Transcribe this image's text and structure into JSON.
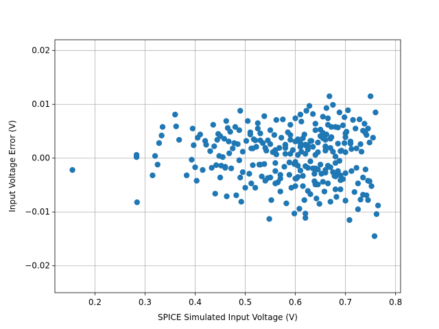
{
  "chart_data": {
    "type": "scatter",
    "title": "",
    "xlabel": "SPICE Simulated Input Voltage (V)",
    "ylabel": "Input Voltage Error (V)",
    "xlim": [
      0.12,
      0.81
    ],
    "ylim": [
      -0.025,
      0.022
    ],
    "xticks": [
      0.2,
      0.3,
      0.4,
      0.5,
      0.6,
      0.7,
      0.8
    ],
    "xtick_labels": [
      "0.2",
      "0.3",
      "0.4",
      "0.5",
      "0.6",
      "0.7",
      "0.8"
    ],
    "yticks": [
      -0.02,
      -0.01,
      0.0,
      0.01,
      0.02
    ],
    "ytick_labels": [
      "−0.02",
      "−0.01",
      "0.00",
      "0.01",
      "0.02"
    ],
    "grid": true,
    "marker_color": "#1f77b4",
    "series": [
      {
        "name": "",
        "x": [
          0.155,
          0.283,
          0.283,
          0.284,
          0.315,
          0.32,
          0.325,
          0.328,
          0.333,
          0.335,
          0.36,
          0.362,
          0.368,
          0.383,
          0.393,
          0.395,
          0.397,
          0.4,
          0.403,
          0.405,
          0.41,
          0.415,
          0.42,
          0.422,
          0.43,
          0.433,
          0.436,
          0.44,
          0.442,
          0.444,
          0.446,
          0.45,
          0.452,
          0.455,
          0.458,
          0.46,
          0.462,
          0.463,
          0.465,
          0.467,
          0.47,
          0.472,
          0.475,
          0.478,
          0.48,
          0.482,
          0.485,
          0.488,
          0.49,
          0.49,
          0.492,
          0.495,
          0.5,
          0.502,
          0.505,
          0.508,
          0.51,
          0.512,
          0.515,
          0.517,
          0.52,
          0.522,
          0.525,
          0.528,
          0.53,
          0.533,
          0.535,
          0.538,
          0.54,
          0.542,
          0.545,
          0.548,
          0.55,
          0.552,
          0.555,
          0.558,
          0.56,
          0.562,
          0.565,
          0.568,
          0.57,
          0.572,
          0.575,
          0.578,
          0.58,
          0.582,
          0.585,
          0.588,
          0.59,
          0.592,
          0.595,
          0.598,
          0.6,
          0.602,
          0.605,
          0.608,
          0.61,
          0.612,
          0.615,
          0.618,
          0.62,
          0.622,
          0.625,
          0.628,
          0.63,
          0.632,
          0.635,
          0.638,
          0.64,
          0.642,
          0.645,
          0.648,
          0.65,
          0.652,
          0.655,
          0.658,
          0.66,
          0.662,
          0.665,
          0.668,
          0.67,
          0.672,
          0.675,
          0.678,
          0.68,
          0.682,
          0.685,
          0.688,
          0.69,
          0.692,
          0.695,
          0.698,
          0.7,
          0.702,
          0.705,
          0.708,
          0.71,
          0.712,
          0.715,
          0.718,
          0.72,
          0.722,
          0.725,
          0.728,
          0.73,
          0.732,
          0.735,
          0.738,
          0.74,
          0.742,
          0.745,
          0.748,
          0.75,
          0.752,
          0.755,
          0.758,
          0.76,
          0.765,
          0.742,
          0.74,
          0.745,
          0.762,
          0.735,
          0.73,
          0.745,
          0.725,
          0.698,
          0.62,
          0.598,
          0.618,
          0.665,
          0.672,
          0.66,
          0.64,
          0.655,
          0.695,
          0.68,
          0.61,
          0.59,
          0.545,
          0.525,
          0.515,
          0.495,
          0.45,
          0.438,
          0.46,
          0.51,
          0.53,
          0.56,
          0.58,
          0.605,
          0.625,
          0.645,
          0.67,
          0.69,
          0.71,
          0.722,
          0.735,
          0.748,
          0.712,
          0.688,
          0.662,
          0.638,
          0.612,
          0.588,
          0.562,
          0.538,
          0.512,
          0.488,
          0.468,
          0.448,
          0.6,
          0.62,
          0.64,
          0.66,
          0.68,
          0.7,
          0.6,
          0.62,
          0.64,
          0.66,
          0.68,
          0.7,
          0.61,
          0.63,
          0.65,
          0.67,
          0.69,
          0.61,
          0.63,
          0.65,
          0.67,
          0.69,
          0.6,
          0.62,
          0.64,
          0.66,
          0.68,
          0.7,
          0.6,
          0.62,
          0.64,
          0.66,
          0.68,
          0.7,
          0.605,
          0.625,
          0.645,
          0.665,
          0.685,
          0.605,
          0.625,
          0.645,
          0.665,
          0.685,
          0.615,
          0.635,
          0.655,
          0.675,
          0.615,
          0.635,
          0.655,
          0.675,
          0.57,
          0.58,
          0.59,
          0.57,
          0.58,
          0.59,
          0.55,
          0.56,
          0.55,
          0.56,
          0.54,
          0.53,
          0.52
        ],
        "y": [
          -0.0022,
          0.0006,
          0.0002,
          -0.0082,
          -0.0032,
          0.0004,
          -0.0012,
          0.0028,
          0.0042,
          0.0058,
          0.0081,
          0.0059,
          0.0034,
          -0.0032,
          -0.0003,
          0.0055,
          0.0024,
          -0.0017,
          -0.0042,
          0.0038,
          0.0044,
          -0.0022,
          0.0032,
          0.0025,
          0.0013,
          -0.0018,
          0.0062,
          -0.0066,
          -0.0013,
          0.0034,
          0.0045,
          -0.0036,
          -0.0014,
          0.0002,
          0.0036,
          -0.0018,
          0.0069,
          -0.0071,
          0.0056,
          0.0031,
          0.0049,
          -0.0019,
          0.0018,
          0.0028,
          0.0058,
          -0.0069,
          0.0026,
          0.0052,
          0.0088,
          -0.0036,
          -0.0081,
          0.0012,
          -0.0055,
          0.0032,
          0.0069,
          -0.0029,
          0.0044,
          -0.0047,
          0.0018,
          0.0035,
          -0.0055,
          0.0021,
          0.0065,
          -0.0012,
          0.0046,
          -0.0034,
          0.0028,
          0.0078,
          -0.0042,
          0.0014,
          0.0033,
          -0.0113,
          0.0052,
          -0.0078,
          0.0011,
          0.0043,
          -0.0024,
          0.0071,
          -0.0045,
          0.0019,
          -0.0062,
          0.0038,
          0.0072,
          -0.0016,
          0.0025,
          -0.0084,
          0.0048,
          -0.0031,
          0.0062,
          -0.0055,
          0.0015,
          -0.0103,
          0.0074,
          -0.0038,
          0.0035,
          -0.0094,
          0.0021,
          0.0068,
          -0.0052,
          0.0044,
          -0.0111,
          0.0088,
          -0.0018,
          0.0097,
          -0.0067,
          0.0032,
          0.0082,
          -0.0043,
          0.0064,
          -0.0075,
          0.0011,
          -0.0085,
          0.0053,
          -0.0029,
          0.0077,
          -0.0062,
          0.0021,
          0.0093,
          -0.0047,
          0.0115,
          -0.0081,
          0.0039,
          0.0099,
          -0.0033,
          0.0058,
          -0.0072,
          0.0027,
          0.0085,
          -0.0058,
          0.0014,
          -0.0039,
          0.0076,
          -0.0079,
          0.0049,
          0.0089,
          -0.0115,
          0.0031,
          -0.0024,
          0.0071,
          -0.0063,
          0.0055,
          0.0018,
          -0.0047,
          0.0072,
          -0.0077,
          0.0012,
          -0.0036,
          0.0064,
          -0.0021,
          0.0043,
          -0.0078,
          0.0029,
          0.0115,
          -0.0052,
          0.0038,
          -0.0145,
          0.0085,
          -0.0088,
          -0.0069,
          0.0047,
          0.0055,
          -0.0104,
          -0.0068,
          0.0026,
          -0.0042,
          -0.0095,
          0.0028,
          -0.0103,
          -0.0011,
          -0.0078,
          0.0074,
          0.0058,
          -0.0022,
          -0.0049,
          0.0037,
          0.0061,
          -0.0028,
          0.0081,
          0.0008,
          -0.0037,
          0.0055,
          -0.0013,
          -0.0026,
          0.0041,
          0.0022,
          -0.0016,
          0.0048,
          0.0033,
          -0.0009,
          0.0019,
          -0.0014,
          0.0024,
          -0.0021,
          0.0036,
          -0.0032,
          0.0027,
          -0.0018,
          0.0051,
          -0.0043,
          0.0017,
          -0.0005,
          0.0044,
          -0.0029,
          0.0012,
          -0.0008,
          0.0007,
          -0.0011,
          0.0018,
          -0.0004,
          0.0009,
          0.0004,
          -0.0007,
          0.0024,
          -0.0019,
          0.0014,
          0.0003,
          -0.0028,
          0.0031,
          -0.0015,
          0.0006,
          0.0022,
          -0.0034,
          0.0011,
          -0.0023,
          0.0032,
          -0.0012,
          0.0019,
          -0.0041,
          0.0028,
          -0.0006,
          0.0041,
          -0.0017,
          0.0013,
          -0.0038,
          0.0025,
          -0.0046,
          0.0034,
          -0.0009,
          0.0046,
          -0.0052,
          0.0008,
          0.0052,
          -0.0027,
          -0.0058,
          0.0039,
          -0.0035,
          0.0016,
          -0.0049,
          0.0062,
          -0.0024,
          0.0006,
          -0.0061,
          0.0029,
          -0.0014,
          0.0057,
          -0.0033,
          0.0021,
          -0.0044,
          0.0012,
          0.0037,
          -0.0019,
          0.0047,
          -0.0026,
          -0.0038,
          0.0024,
          0.0034,
          -0.0031,
          0.0008,
          0.0043,
          -0.0036,
          0.0015,
          0.0026,
          -0.0047,
          0.0019,
          -0.0012,
          0.0033
        ]
      }
    ]
  }
}
